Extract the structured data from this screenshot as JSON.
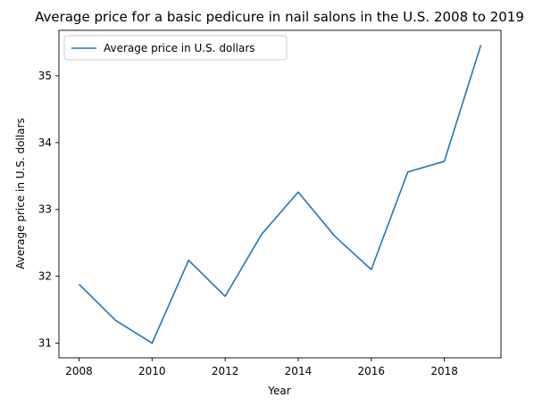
{
  "chart_data": {
    "type": "line",
    "title": "Average price for a basic pedicure in nail salons in the U.S. 2008 to 2019",
    "xlabel": "Year",
    "ylabel": "Average price in U.S. dollars",
    "x": [
      2008,
      2009,
      2010,
      2011,
      2012,
      2013,
      2014,
      2015,
      2016,
      2017,
      2018,
      2019
    ],
    "series": [
      {
        "name": "Average price in U.S. dollars",
        "color": "#1f77b4",
        "values": [
          31.88,
          31.34,
          31.0,
          32.24,
          31.7,
          32.63,
          33.26,
          32.6,
          32.1,
          33.56,
          33.72,
          35.46
        ]
      }
    ],
    "xlim": [
      2007.45,
      2019.55
    ],
    "ylim": [
      30.78,
      35.68
    ],
    "xticks": [
      2008,
      2010,
      2012,
      2014,
      2016,
      2018
    ],
    "yticks": [
      31,
      32,
      33,
      34,
      35
    ],
    "grid": false,
    "legend_position": "top-left"
  }
}
